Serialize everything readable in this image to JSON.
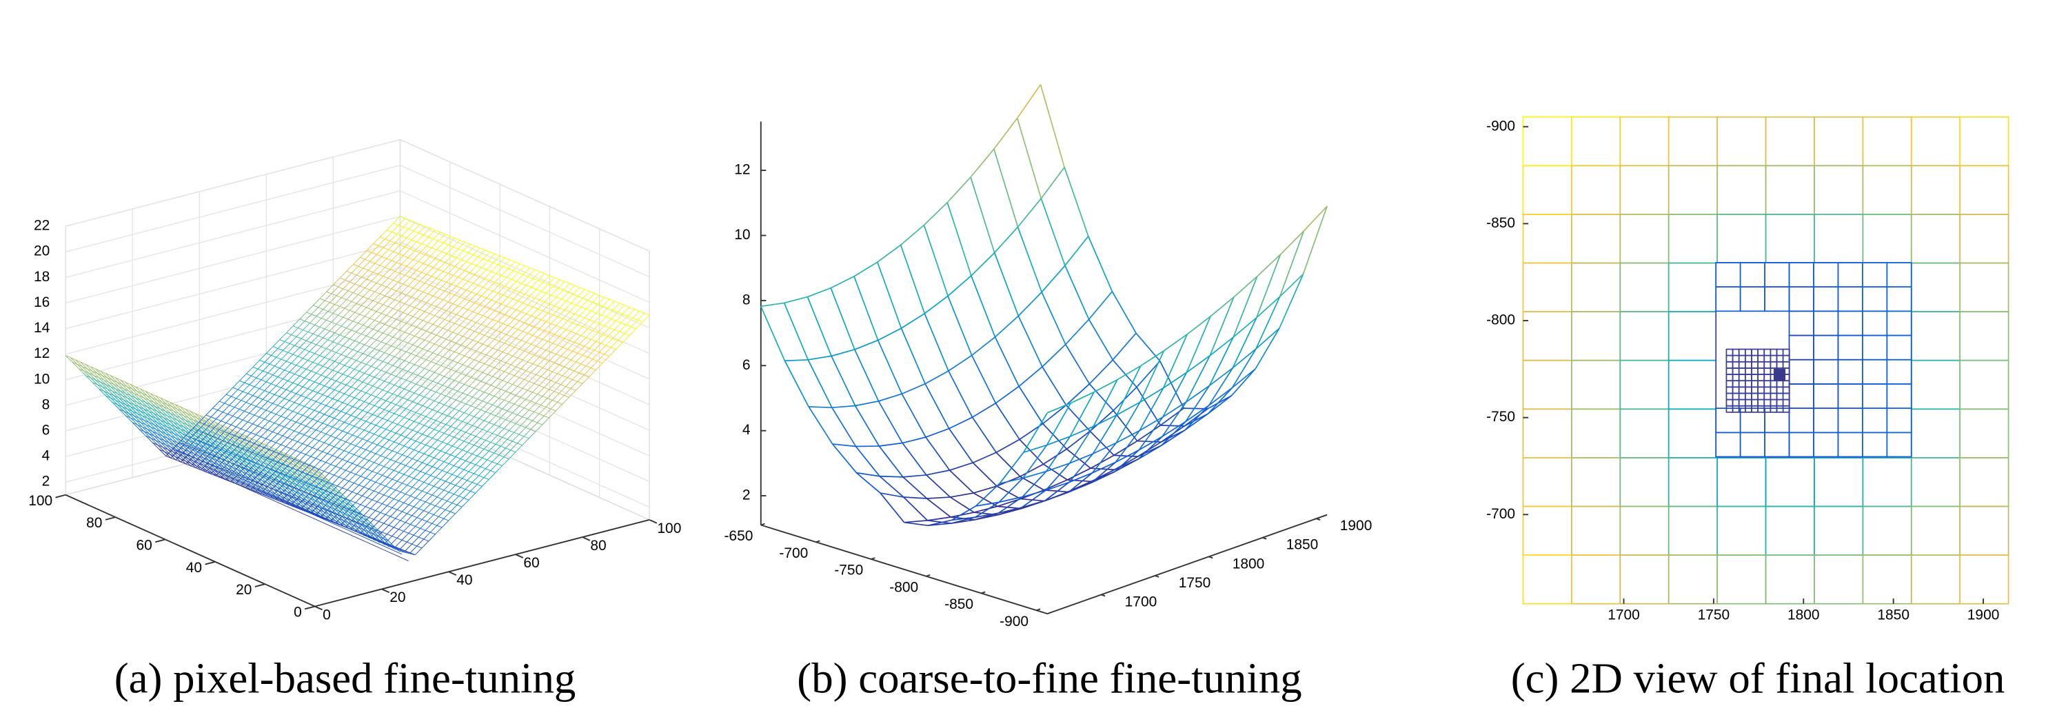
{
  "chart_data": [
    {
      "type": "surface",
      "caption": "(a) pixel-based fine-tuning",
      "xlim": [
        0,
        100
      ],
      "xticks": [
        0,
        20,
        40,
        60,
        80,
        100
      ],
      "ylim": [
        0,
        100
      ],
      "yticks": [
        0,
        20,
        40,
        60,
        80,
        100
      ],
      "zlim": [
        1,
        22
      ],
      "zticks": [
        2,
        4,
        6,
        8,
        10,
        12,
        14,
        16,
        18,
        20,
        22
      ]
    },
    {
      "type": "mesh",
      "caption": "(b) coarse-to-fine fine-tuning",
      "xlim": [
        -650,
        -910
      ],
      "xticks": [
        -650,
        -700,
        -750,
        -800,
        -850,
        -900
      ],
      "ylim": [
        1650,
        1910
      ],
      "yticks": [
        1700,
        1750,
        1800,
        1850,
        1900
      ],
      "zlim": [
        1.1,
        13.5
      ],
      "zticks": [
        2,
        4,
        6,
        8,
        10,
        12
      ]
    },
    {
      "type": "grid2d",
      "caption": "(c) 2D view of final location",
      "xlim": [
        1644,
        1914
      ],
      "xticks": [
        1700,
        1750,
        1800,
        1850,
        1900
      ],
      "ylim": [
        -905,
        -654
      ],
      "yticks": [
        -900,
        -850,
        -800,
        -750,
        -700
      ]
    }
  ]
}
